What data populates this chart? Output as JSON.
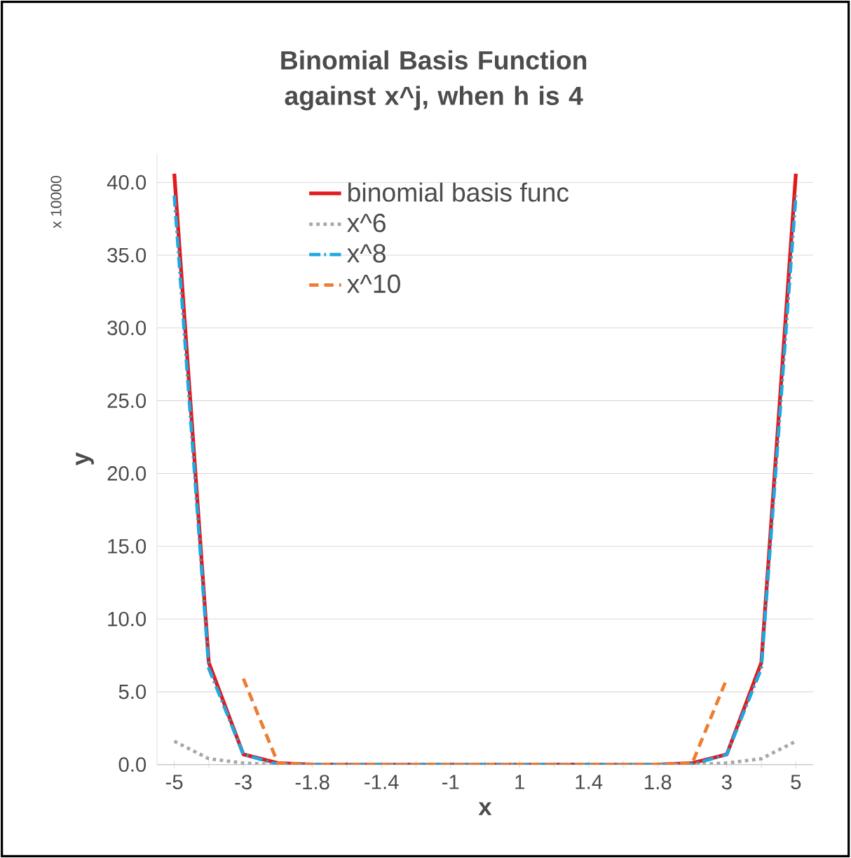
{
  "chart_data": {
    "type": "line",
    "title": "Binomial Basis Function against x^j, when h is 4",
    "xlabel": "x",
    "ylabel": "y",
    "annotations": [
      "x 10000"
    ],
    "categories": [
      "-5",
      null,
      "-3",
      null,
      "-1.8",
      null,
      "-1.4",
      null,
      "-1",
      null,
      "1",
      null,
      "1.4",
      null,
      "1.8",
      null,
      "3",
      null,
      "5"
    ],
    "series": [
      {
        "name": "binomial basis func",
        "color": "#e31a1c",
        "line_style": "solid",
        "values": [
          40.6,
          7.0,
          0.7,
          0.1,
          0,
          0,
          0,
          0,
          0,
          0,
          0,
          0,
          0,
          0,
          0,
          0.1,
          0.7,
          7.0,
          40.6
        ]
      },
      {
        "name": "x^6",
        "color": "#a6a6a6",
        "line_style": "dotted",
        "values": [
          1.6,
          0.4,
          0.1,
          0,
          0,
          0,
          0,
          0,
          0,
          0,
          0,
          0,
          0,
          0,
          0,
          0,
          0.1,
          0.4,
          1.6
        ]
      },
      {
        "name": "x^8",
        "color": "#1fa8e0",
        "line_style": "dashdot",
        "values": [
          39.1,
          6.6,
          0.7,
          0,
          0,
          0,
          0,
          0,
          0,
          0,
          0,
          0,
          0,
          0,
          0,
          0,
          0.7,
          6.6,
          39.1
        ]
      },
      {
        "name": "x^10",
        "color": "#ed7d31",
        "line_style": "dashed",
        "values": [
          null,
          null,
          5.9,
          0.1,
          0,
          0,
          0,
          0,
          0,
          0,
          0,
          0,
          0,
          0,
          0,
          0.1,
          5.9,
          null,
          null
        ]
      }
    ],
    "ylim": [
      0,
      42
    ],
    "yticks": [
      {
        "value": 0,
        "label": "0.0"
      },
      {
        "value": 5,
        "label": "5.0"
      },
      {
        "value": 10,
        "label": "10.0"
      },
      {
        "value": 15,
        "label": "15.0"
      },
      {
        "value": 20,
        "label": "20.0"
      },
      {
        "value": 25,
        "label": "25.0"
      },
      {
        "value": 30,
        "label": "30.0"
      },
      {
        "value": 35,
        "label": "35.0"
      },
      {
        "value": 40,
        "label": "40.0"
      }
    ],
    "grid": "y",
    "legend": "top",
    "marker": "none"
  }
}
